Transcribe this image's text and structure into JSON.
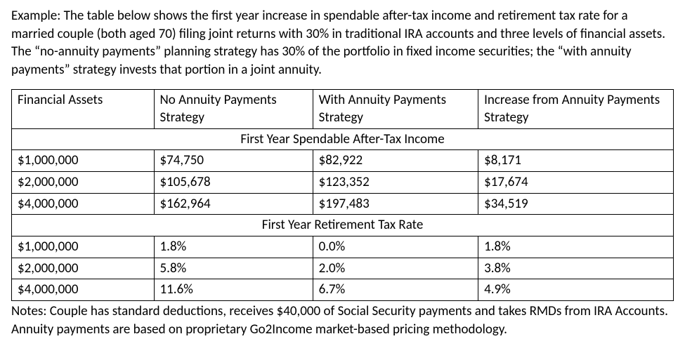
{
  "intro_text": "Example: The table below shows the first year increase in spendable after-tax income and retirement tax rate for a married couple (both aged 70) filing joint returns with 30% in traditional IRA accounts and three levels of financial assets. The “no-annuity payments” planning strategy has 30% of the portfolio in fixed income securities; the “with annuity payments” strategy invests that portion in a joint annuity.",
  "table": {
    "type": "table",
    "border_color": "#000000",
    "background_color": "#ffffff",
    "font_family": "Calibri",
    "font_size_pt": 14,
    "column_widths_pct": [
      21.5,
      24,
      25,
      29.5
    ],
    "header": {
      "c1": "Financial Assets",
      "c2": "No Annuity Payments Strategy",
      "c3": "With Annuity Payments Strategy",
      "c4": "Increase from Annuity Payments Strategy"
    },
    "section1_title": "First Year Spendable After-Tax Income",
    "section1_rows": [
      {
        "c1": "$1,000,000",
        "c2": "$74,750",
        "c3": "$82,922",
        "c4": "$8,171"
      },
      {
        "c1": "$2,000,000",
        "c2": "$105,678",
        "c3": "$123,352",
        "c4": "$17,674"
      },
      {
        "c1": "$4,000,000",
        "c2": "$162,964",
        "c3": "$197,483",
        "c4": "$34,519"
      }
    ],
    "section2_title": "First Year Retirement Tax Rate",
    "section2_rows": [
      {
        "c1": "$1,000,000",
        "c2": "1.8%",
        "c3": "0.0%",
        "c4": "1.8%"
      },
      {
        "c1": "$2,000,000",
        "c2": "5.8%",
        "c3": "2.0%",
        "c4": "3.8%"
      },
      {
        "c1": "$4,000,000",
        "c2": "11.6%",
        "c3": "6.7%",
        "c4": "4.9%"
      }
    ]
  },
  "notes_text": "Notes: Couple has standard deductions, receives $40,000 of Social Security payments and takes RMDs from IRA Accounts. Annuity payments are based on proprietary Go2Income market-based pricing methodology."
}
